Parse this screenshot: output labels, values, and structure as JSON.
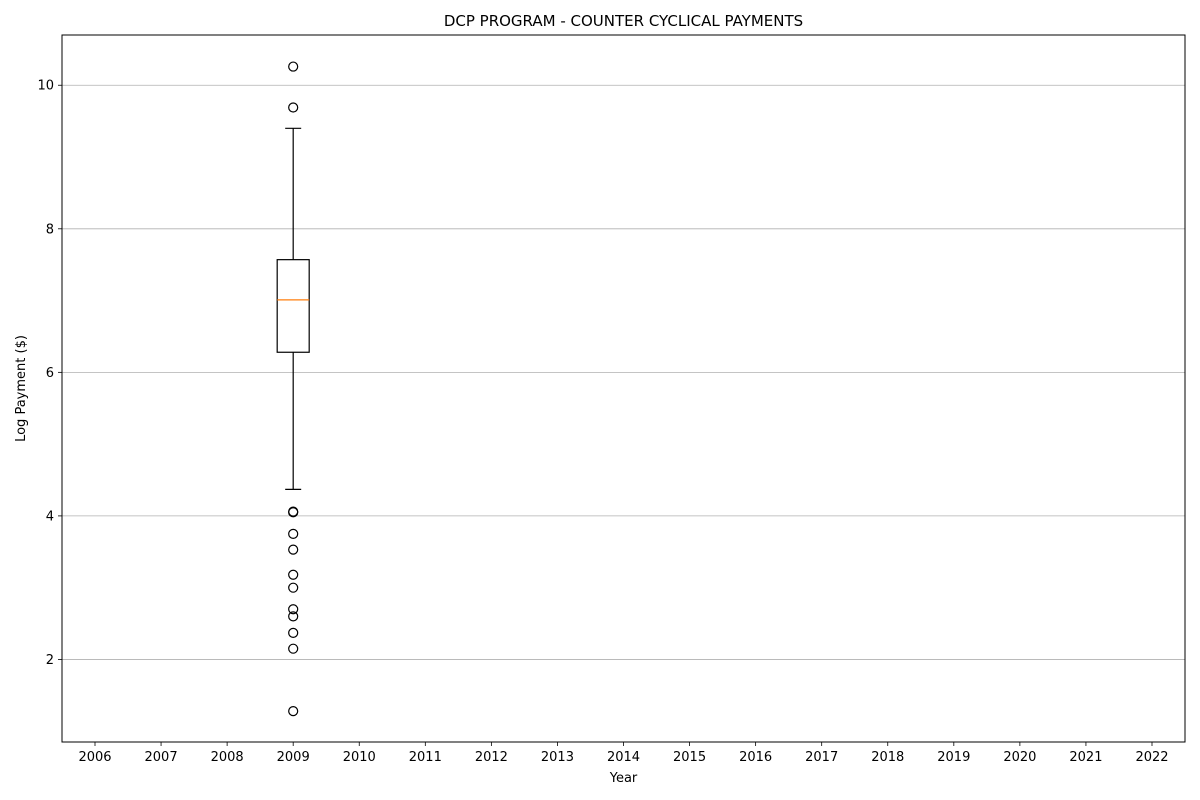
{
  "chart_data": {
    "type": "box",
    "title": "DCP PROGRAM - COUNTER CYCLICAL PAYMENTS",
    "xlabel": "Year",
    "ylabel": "Log Payment ($)",
    "categories": [
      "2006",
      "2007",
      "2008",
      "2009",
      "2010",
      "2011",
      "2012",
      "2013",
      "2014",
      "2015",
      "2016",
      "2017",
      "2018",
      "2019",
      "2020",
      "2021",
      "2022"
    ],
    "y_ticks": [
      2,
      4,
      6,
      8,
      10
    ],
    "ylim": [
      0.85,
      10.7
    ],
    "grid": "horizontal",
    "boxes": [
      {
        "category": "2009",
        "whisker_low": 4.37,
        "q1": 6.28,
        "median": 7.01,
        "q3": 7.57,
        "whisker_high": 9.4,
        "outliers": [
          10.26,
          9.69,
          4.06,
          4.05,
          3.75,
          3.53,
          3.18,
          3.0,
          2.7,
          2.6,
          2.37,
          2.15,
          1.28
        ]
      }
    ],
    "colors": {
      "box": "#000000",
      "median": "#ff7f0e",
      "grid": "#b0b0b0"
    }
  }
}
